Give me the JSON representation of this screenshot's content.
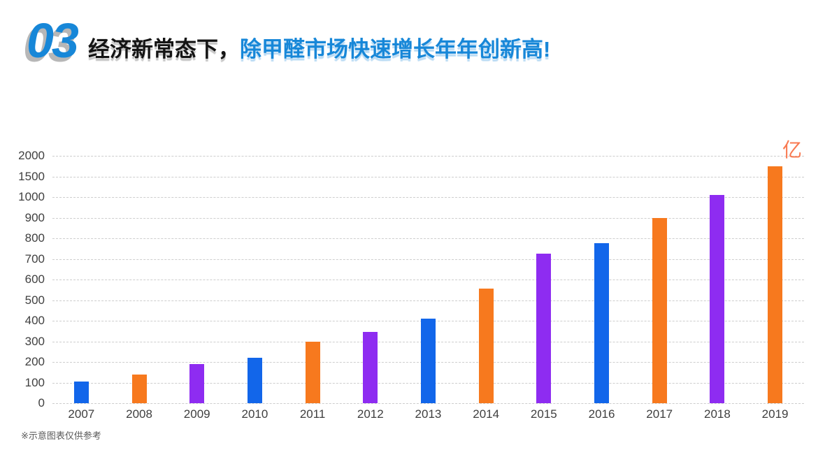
{
  "header": {
    "number": "03",
    "title_black": "经济新常态下，",
    "title_blue": "除甲醛市场快速增长年年创新高!",
    "number_color": "#1787d8",
    "title_blue_color": "#1787d8",
    "title_black_color": "#141414"
  },
  "footnote": "※示意图表仅供参考",
  "chart_data": {
    "type": "bar",
    "title": "",
    "xlabel": "",
    "ylabel": "",
    "unit_label": "亿",
    "unit_label_color": "#f97950",
    "categories": [
      "2007",
      "2008",
      "2009",
      "2010",
      "2011",
      "2012",
      "2013",
      "2014",
      "2015",
      "2016",
      "2017",
      "2018",
      "2019"
    ],
    "values": [
      105,
      140,
      190,
      220,
      300,
      345,
      410,
      555,
      725,
      775,
      900,
      1050,
      1750
    ],
    "bar_color_sequence": [
      "blue",
      "orange",
      "purple",
      "blue",
      "orange",
      "purple",
      "blue",
      "orange",
      "purple",
      "blue",
      "orange",
      "purple",
      "orange"
    ],
    "colors": {
      "blue": "#1266ea",
      "orange": "#f7791e",
      "purple": "#8e2cf1"
    },
    "y_ticks": [
      0,
      100,
      200,
      300,
      400,
      500,
      600,
      700,
      800,
      900,
      1000,
      1500,
      2000
    ],
    "y_axis_note": "non-linear axis: 100-unit steps from 0 to 1000, then 500-unit steps (1500, 2000) with equal spacing",
    "grid": "dashed horizontal gridlines, no vertical axis line",
    "legend": "none",
    "label_color": "#3f3f3f",
    "grid_color": "#cdcdcd"
  }
}
